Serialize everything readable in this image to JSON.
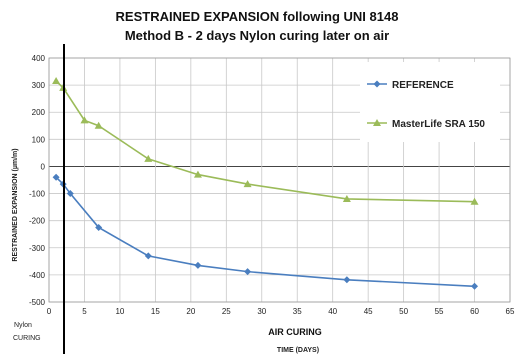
{
  "chart_data": {
    "type": "line",
    "title_line1": "RESTRAINED EXPANSION following  UNI 8148",
    "title_line2": "Method B - 2 days Nylon curing later on air",
    "ylabel": "RESTRAINED  EXPANSION (µm/m)",
    "xlabel_main": "AIR CURING",
    "xlabel_sub": "TIME (DAYS)",
    "nylon_label": "Nylon",
    "curing_label": "CURING",
    "xlim": [
      0,
      65
    ],
    "ylim": [
      -500,
      400
    ],
    "x_ticks": [
      0,
      5,
      10,
      15,
      20,
      25,
      30,
      35,
      40,
      45,
      50,
      55,
      60,
      65
    ],
    "y_ticks": [
      -500,
      -400,
      -300,
      -200,
      -100,
      0,
      100,
      200,
      300,
      400
    ],
    "grid": true,
    "legend_position": "right",
    "series": [
      {
        "name": "REFERENCE",
        "color": "#4a7ebf",
        "marker": "diamond",
        "x": [
          1,
          2,
          3,
          7,
          14,
          21,
          28,
          42,
          60
        ],
        "y": [
          -40,
          -65,
          -100,
          -225,
          -330,
          -365,
          -388,
          -418,
          -442
        ]
      },
      {
        "name": "MasterLife SRA 150",
        "color": "#9bbb59",
        "marker": "triangle",
        "x": [
          1,
          2,
          5,
          7,
          14,
          21,
          28,
          42,
          60
        ],
        "y": [
          315,
          290,
          170,
          150,
          28,
          -30,
          -65,
          -120,
          -130
        ]
      }
    ]
  }
}
